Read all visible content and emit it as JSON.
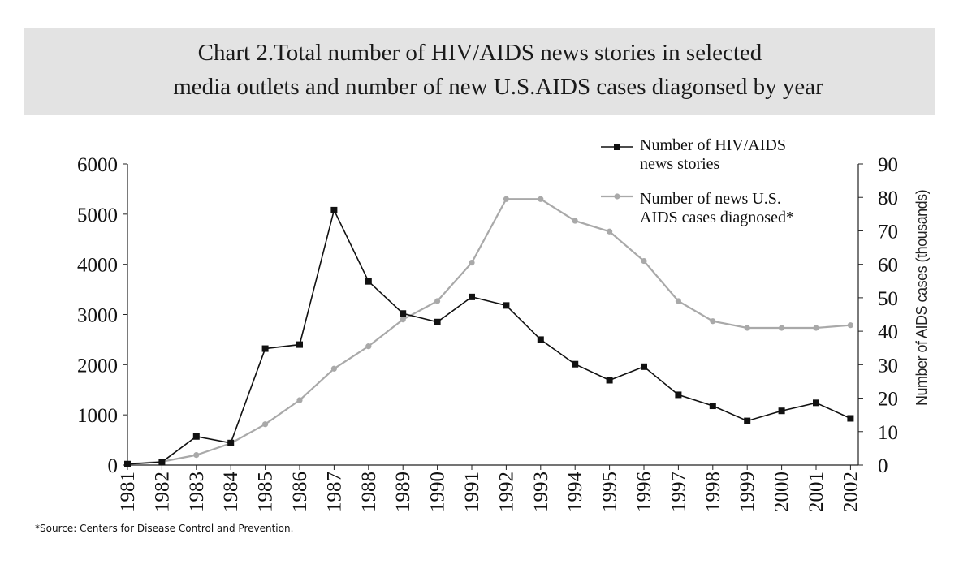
{
  "chart_data": {
    "type": "line",
    "title_line1": "Chart 2.Total number of HIV/AIDS news stories in selected",
    "title_line2": "media outlets and number of new U.S.AIDS cases diagonsed by year",
    "categories": [
      "1981",
      "1982",
      "1983",
      "1984",
      "1985",
      "1986",
      "1987",
      "1988",
      "1989",
      "1990",
      "1991",
      "1992",
      "1993",
      "1994",
      "1995",
      "1996",
      "1997",
      "1998",
      "1999",
      "2000",
      "2001",
      "2002"
    ],
    "y_left": {
      "min": 0,
      "max": 6000,
      "ticks": [
        "0",
        "1000",
        "2000",
        "3000",
        "4000",
        "5000",
        "6000"
      ]
    },
    "y_right": {
      "min": 0,
      "max": 90,
      "ticks": [
        "0",
        "10",
        "20",
        "30",
        "40",
        "50",
        "60",
        "70",
        "80",
        "90"
      ],
      "label": "Number of AIDS cases (thousands)"
    },
    "series": [
      {
        "name": "Number of HIV/AIDS news stories",
        "name_line1": "Number of HIV/AIDS",
        "name_line2": "news stories",
        "axis": "left",
        "color": "#111111",
        "marker": "square",
        "values": [
          20,
          60,
          570,
          440,
          2320,
          2400,
          5080,
          3660,
          3020,
          2850,
          3350,
          3180,
          2500,
          2010,
          1690,
          1960,
          1400,
          1180,
          880,
          1080,
          1240,
          930
        ]
      },
      {
        "name": "Number of news U.S. AIDS cases diagnosed*",
        "name_line1": "Number of news U.S.",
        "name_line2": "AIDS cases diagnosed*",
        "axis": "right",
        "color": "#a9a9a9",
        "marker": "circle",
        "values": [
          0.3,
          1.0,
          3.0,
          6.5,
          12.2,
          19.4,
          28.8,
          35.5,
          43.5,
          49.0,
          60.5,
          79.5,
          79.5,
          73.0,
          69.8,
          61.0,
          49.0,
          43.0,
          41.0,
          41.0,
          41.0,
          41.8
        ]
      }
    ],
    "source": "*Source: Centers for Disease Control and Prevention."
  }
}
